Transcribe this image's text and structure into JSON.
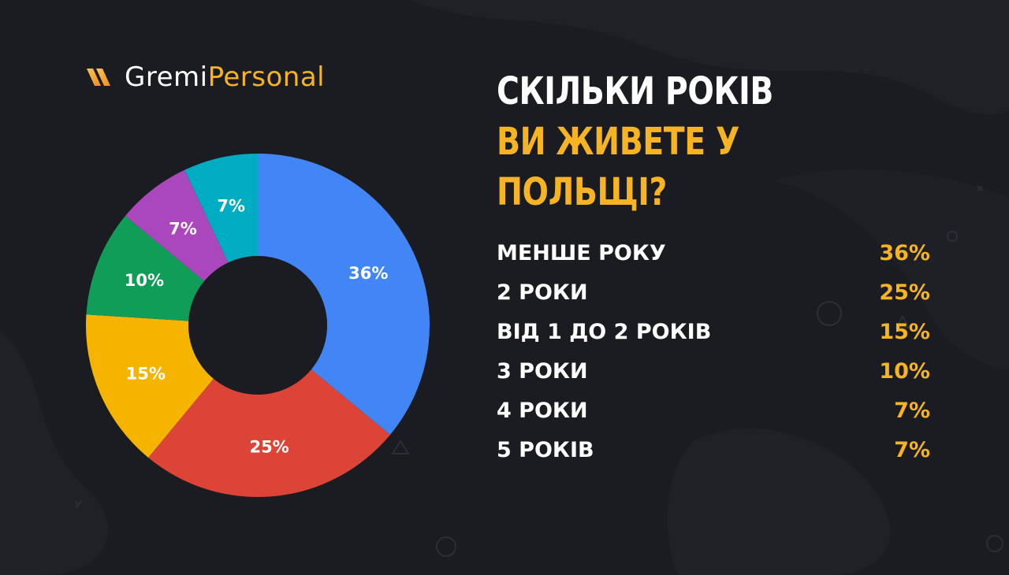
{
  "brand": {
    "part1": "Gremi",
    "part2": "Personal",
    "icon": "gremi-logo-icon"
  },
  "title": {
    "line1": "СКІЛЬКИ РОКІВ",
    "line2": "ВИ ЖИВЕТЕ У ПОЛЬЩІ?"
  },
  "colors": {
    "accent": "#f6b323",
    "background": "#1b1c21",
    "text": "#ffffff"
  },
  "chart_data": {
    "type": "pie",
    "title": "СКІЛЬКИ РОКІВ ВИ ЖИВЕТЕ У ПОЛЬЩІ?",
    "categories": [
      "МЕНШЕ РОКУ",
      "2 РОКИ",
      "ВІД 1 ДО 2 РОКІВ",
      "3 РОКИ",
      "4 РОКИ",
      "5 РОКІВ"
    ],
    "values": [
      36,
      25,
      15,
      10,
      7,
      7
    ],
    "value_labels": [
      "36%",
      "25%",
      "15%",
      "10%",
      "7%",
      "7%"
    ],
    "colors": [
      "#4285f4",
      "#db4437",
      "#f4b400",
      "#0f9d58",
      "#ab47bc",
      "#00acc1"
    ],
    "donut": true,
    "legend": "right"
  }
}
